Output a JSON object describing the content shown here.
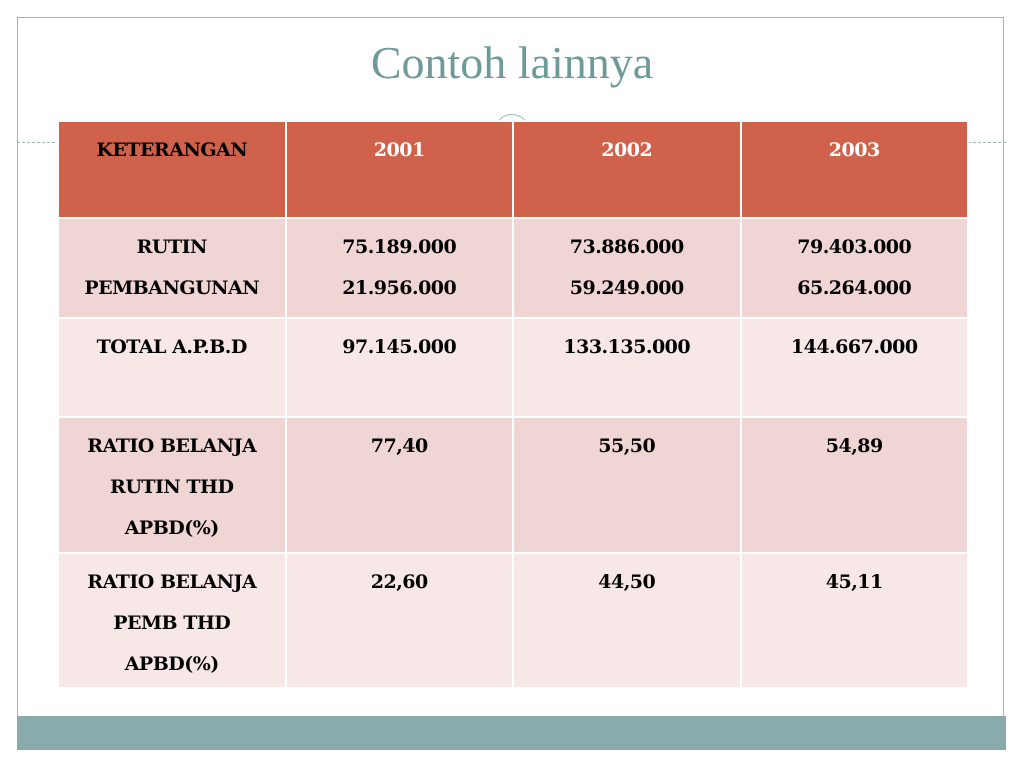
{
  "title": "Contoh lainnya",
  "table": {
    "header": [
      "KETERANGAN",
      "2001",
      "2002",
      "2003"
    ],
    "rows": [
      [
        [
          "RUTIN",
          "PEMBANGUNAN"
        ],
        [
          "75.189.000",
          "21.956.000"
        ],
        [
          "73.886.000",
          "59.249.000"
        ],
        [
          "79.403.000",
          "65.264.000"
        ]
      ],
      [
        "TOTAL A.P.B.D",
        "97.145.000",
        "133.135.000",
        "144.667.000"
      ],
      [
        "RATIO BELANJA RUTIN THD APBD(%)",
        "77,40",
        "55,50",
        "54,89"
      ],
      [
        "RATIO BELANJA PEMB THD APBD(%)",
        "22,60",
        "44,50",
        "45,11"
      ]
    ]
  }
}
